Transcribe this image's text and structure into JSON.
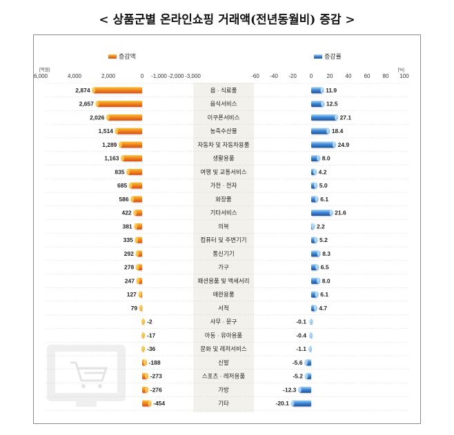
{
  "title": "< 상품군별 온라인쇼핑 거래액(전년동월비) 증감 >",
  "chart_data": {
    "type": "bar",
    "orientation": "horizontal",
    "categories": [
      "음 · 식료품",
      "음식서비스",
      "이쿠폰서비스",
      "농축수산물",
      "자동차 및 자동차용품",
      "생활용품",
      "여행 및 교통서비스",
      "가전 · 전자",
      "화장품",
      "기타서비스",
      "의복",
      "컴퓨터 및 주변기기",
      "통신기기",
      "가구",
      "패션용품 및 액세서리",
      "애완용품",
      "서적",
      "사무 · 문구",
      "아동 · 유아용품",
      "문화 및 레저서비스",
      "신발",
      "스포츠 · 레저용품",
      "가방",
      "기타"
    ],
    "series": [
      {
        "name": "증감액",
        "unit": "[억원]",
        "color": "#e8641c",
        "values": [
          2874,
          2657,
          2026,
          1514,
          1289,
          1163,
          835,
          685,
          586,
          422,
          381,
          335,
          292,
          278,
          247,
          127,
          79,
          -2,
          -17,
          -36,
          -188,
          -273,
          -276,
          -454
        ],
        "labels": [
          "2,874",
          "2,657",
          "2,026",
          "1,514",
          "1,289",
          "1,163",
          "835",
          "685",
          "586",
          "422",
          "381",
          "335",
          "292",
          "278",
          "247",
          "127",
          "79",
          "-2",
          "-17",
          "-36",
          "-188",
          "-273",
          "-276",
          "-454"
        ],
        "axis_ticks": [
          "6,000",
          "4,000",
          "2,000",
          "0",
          "-1,000",
          "-2,000",
          "-3,000"
        ],
        "axis_tick_values": [
          6000,
          4000,
          2000,
          0,
          -1000,
          -2000,
          -3000
        ]
      },
      {
        "name": "증감률",
        "unit": "[%]",
        "color": "#2f6fb8",
        "values": [
          11.9,
          12.5,
          27.1,
          18.4,
          24.9,
          8.0,
          4.2,
          5.0,
          6.1,
          21.6,
          2.2,
          5.2,
          8.3,
          6.5,
          8.0,
          6.1,
          4.7,
          -0.1,
          -0.4,
          -1.1,
          -5.6,
          -5.2,
          -12.3,
          -20.1
        ],
        "labels": [
          "11.9",
          "12.5",
          "27.1",
          "18.4",
          "24.9",
          "8.0",
          "4.2",
          "5.0",
          "6.1",
          "21.6",
          "2.2",
          "5.2",
          "8.3",
          "6.5",
          "8.0",
          "6.1",
          "4.7",
          "-0.1",
          "-0.4",
          "-1.1",
          "-5.6",
          "-5.2",
          "-12.3",
          "-20.1"
        ],
        "axis_ticks": [
          "-60",
          "-40",
          "-20",
          "0",
          "20",
          "40",
          "60",
          "80",
          "100"
        ],
        "axis_tick_values": [
          -60,
          -40,
          -20,
          0,
          20,
          40,
          60,
          80,
          100
        ]
      }
    ],
    "legend": "top",
    "grid": "dotted horizontal separators"
  }
}
